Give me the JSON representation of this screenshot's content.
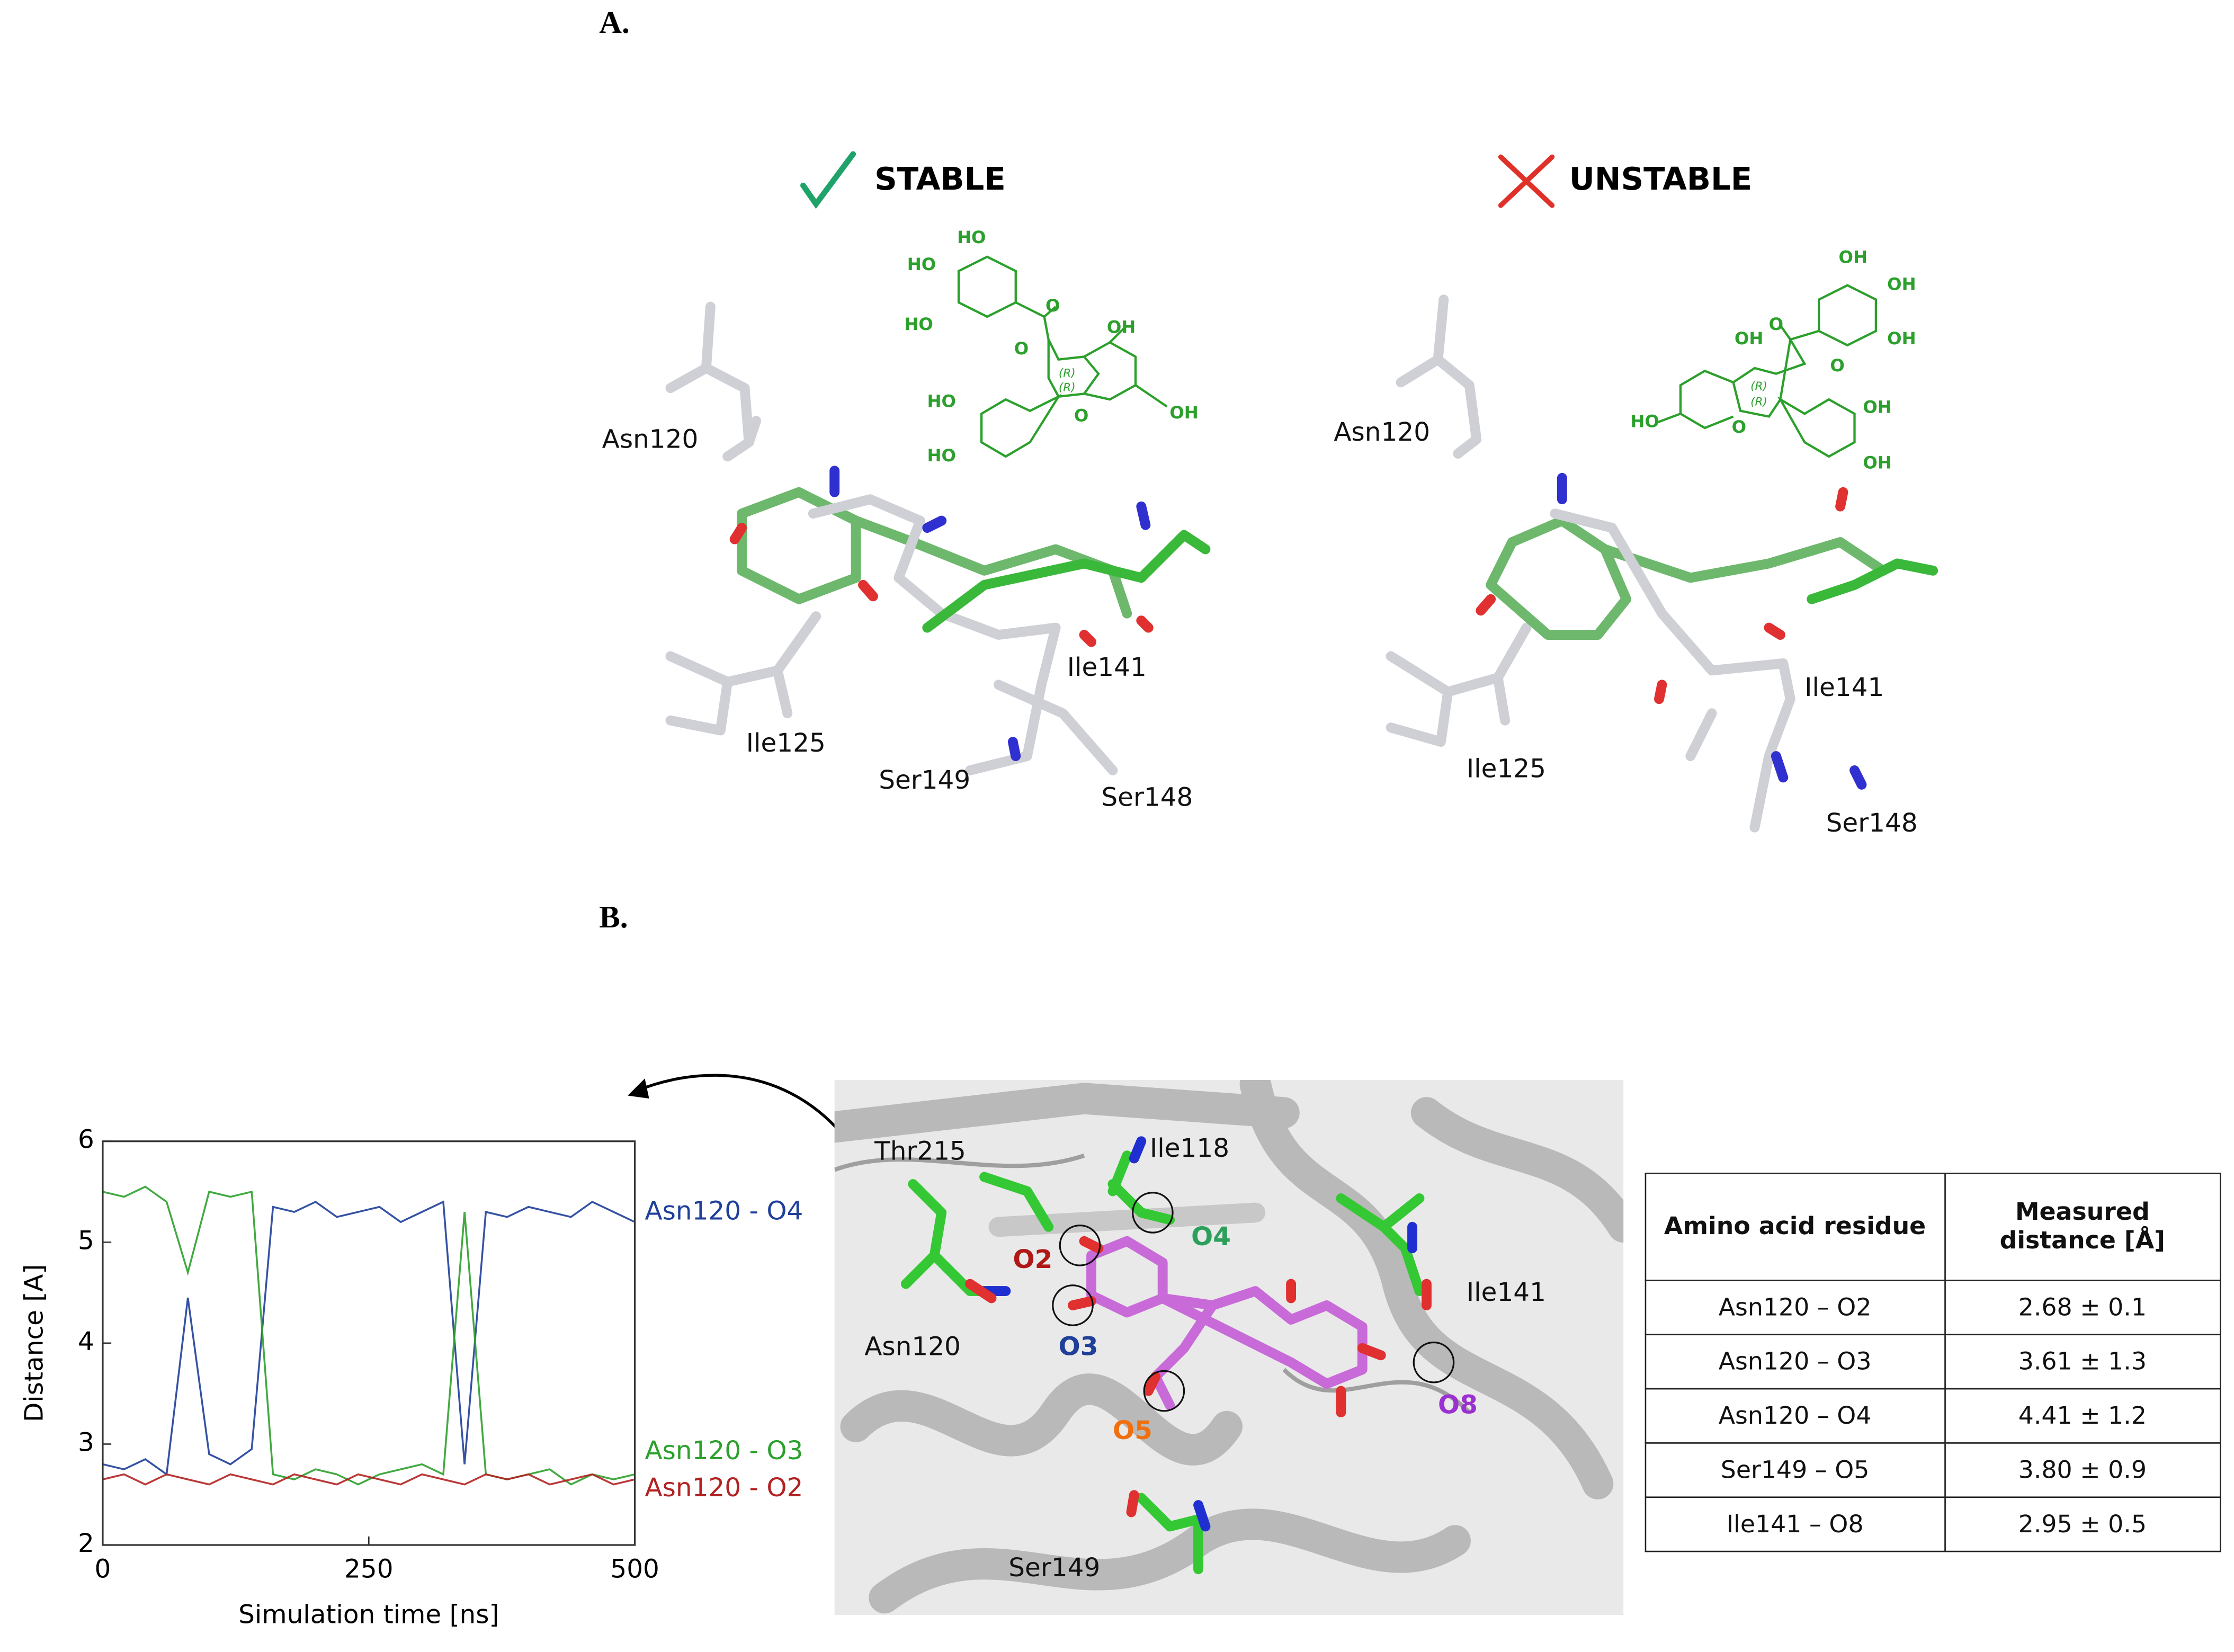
{
  "panel_a": {
    "label": "A.",
    "stable": {
      "title": "STABLE",
      "structure_labels": [
        "HO",
        "HO",
        "HO",
        "O",
        "O",
        "OH",
        "(R)",
        "(R)",
        "O",
        "OH",
        "HO",
        "HO"
      ],
      "residues": [
        "Asn120",
        "Ile125",
        "Ile141",
        "Ser149",
        "Ser148"
      ]
    },
    "unstable": {
      "title": "UNSTABLE",
      "structure_labels": [
        "OH",
        "OH",
        "OH",
        "O",
        "O",
        "OH",
        "(R)",
        "(R)",
        "O",
        "HO",
        "OH",
        "OH"
      ],
      "residues": [
        "Asn120",
        "Ile125",
        "Ile141",
        "Ser148"
      ]
    }
  },
  "panel_b": {
    "label": "B.",
    "residues": [
      "Thr215",
      "Ile118",
      "Ile141",
      "Asn120",
      "Ser149"
    ],
    "atoms": [
      "O2",
      "O3",
      "O4",
      "O5",
      "O8"
    ],
    "table": {
      "header": [
        "Amino acid residue",
        "Measured distance [Å]"
      ],
      "rows": [
        [
          "Asn120 – O2",
          "2.68 ± 0.1"
        ],
        [
          "Asn120 – O3",
          "3.61 ± 1.3"
        ],
        [
          "Asn120 – O4",
          "4.41 ± 1.2"
        ],
        [
          "Ser149 – O5",
          "3.80 ± 0.9"
        ],
        [
          "Ile141 – O8",
          "2.95 ± 0.5"
        ]
      ]
    }
  },
  "chart_data": {
    "type": "line",
    "x_label": "Simulation time [ns]",
    "y_label": "Distance [A]",
    "x": [
      0,
      20,
      40,
      60,
      80,
      100,
      120,
      140,
      160,
      180,
      200,
      220,
      240,
      260,
      280,
      300,
      320,
      340,
      360,
      380,
      400,
      420,
      440,
      460,
      480,
      500
    ],
    "series": [
      {
        "name": "Asn120 - O4",
        "color": "#1f3f99",
        "values": [
          2.8,
          2.75,
          2.85,
          2.7,
          4.45,
          2.9,
          2.8,
          2.95,
          5.35,
          5.3,
          5.4,
          5.25,
          5.3,
          5.35,
          5.2,
          5.3,
          5.4,
          2.8,
          5.3,
          5.25,
          5.35,
          5.3,
          5.25,
          5.4,
          5.3,
          5.2
        ]
      },
      {
        "name": "Asn120 - O3",
        "color": "#2ca02c",
        "values": [
          5.5,
          5.45,
          5.55,
          5.4,
          4.7,
          5.5,
          5.45,
          5.5,
          2.7,
          2.65,
          2.75,
          2.7,
          2.6,
          2.7,
          2.75,
          2.8,
          2.7,
          5.3,
          2.7,
          2.65,
          2.7,
          2.75,
          2.6,
          2.7,
          2.65,
          2.7
        ]
      },
      {
        "name": "Asn120 - O2",
        "color": "#b22222",
        "values": [
          2.65,
          2.7,
          2.6,
          2.7,
          2.65,
          2.6,
          2.7,
          2.65,
          2.6,
          2.7,
          2.65,
          2.6,
          2.7,
          2.65,
          2.6,
          2.7,
          2.65,
          2.6,
          2.7,
          2.65,
          2.7,
          2.6,
          2.65,
          2.7,
          2.6,
          2.65
        ]
      }
    ],
    "xlim": [
      0,
      500
    ],
    "ylim": [
      2,
      6
    ],
    "xticks": [
      0,
      250,
      500
    ],
    "yticks": [
      2,
      3,
      4,
      5,
      6
    ]
  }
}
